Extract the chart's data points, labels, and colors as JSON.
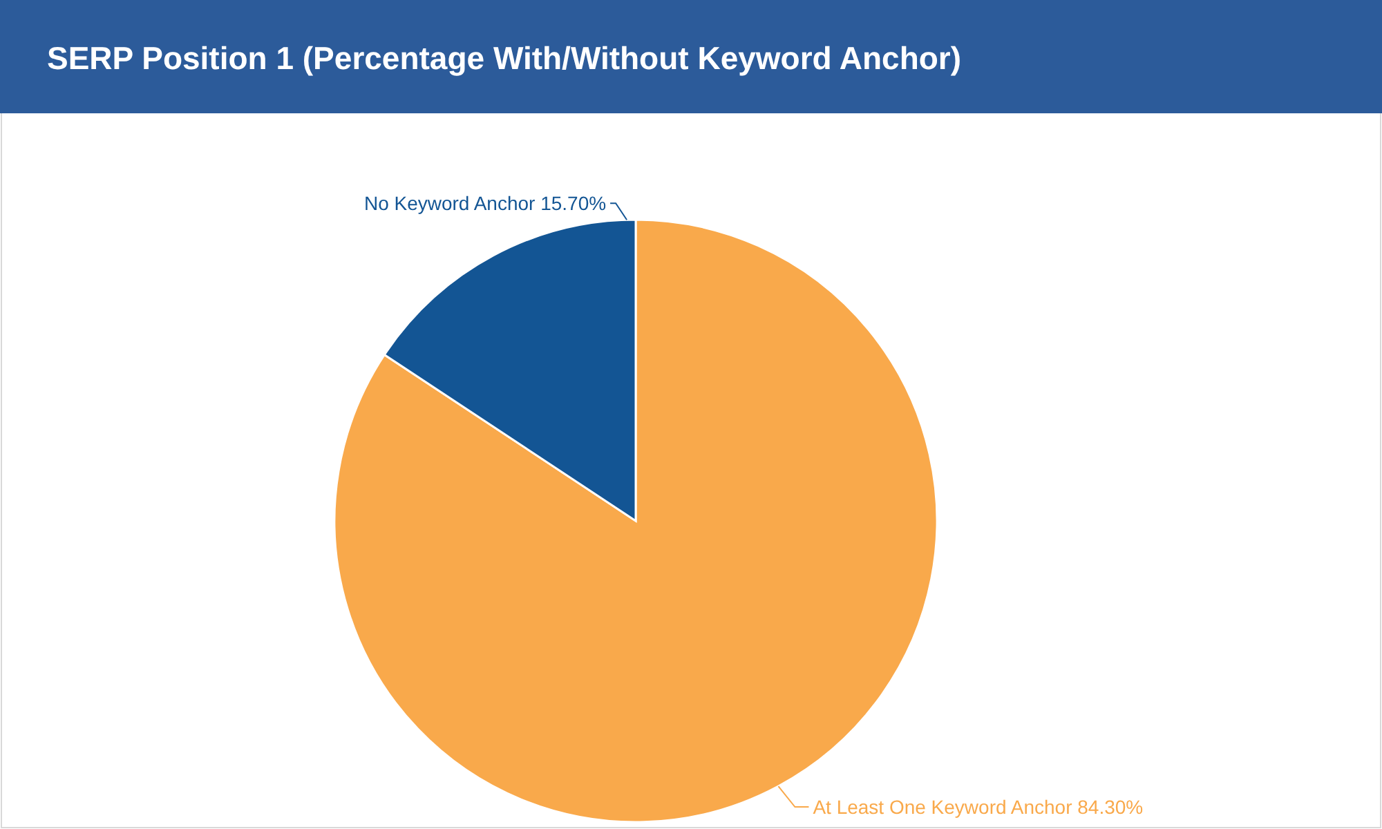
{
  "chart_data": {
    "type": "pie",
    "title": "SERP Position 1 (Percentage With/Without Keyword Anchor)",
    "categories": [
      "At Least One Keyword Anchor",
      "No Keyword Anchor"
    ],
    "values": [
      84.3,
      15.7
    ],
    "value_labels": [
      "84.30%",
      "15.70%"
    ],
    "colors": [
      "#f9a94b",
      "#135594"
    ],
    "legend": false
  }
}
